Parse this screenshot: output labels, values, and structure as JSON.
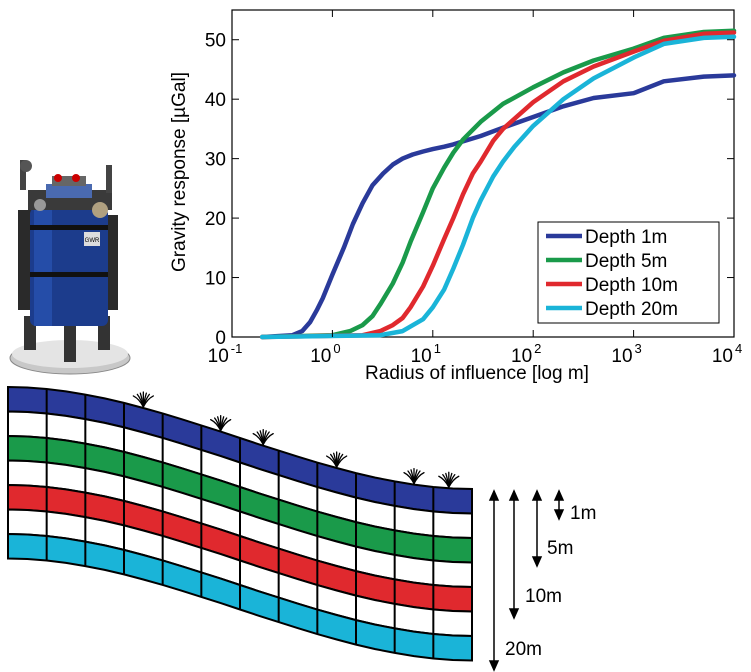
{
  "chart_data": {
    "type": "line",
    "xlabel": "Radius of influence [log m]",
    "ylabel": "Gravity response [µGal]",
    "x_scale": "log",
    "xlim": [
      0.1,
      10000
    ],
    "ylim": [
      0,
      55
    ],
    "x_ticks": [
      {
        "value": 0.1,
        "base": "10",
        "exp": "-1"
      },
      {
        "value": 1,
        "base": "10",
        "exp": "0"
      },
      {
        "value": 10,
        "base": "10",
        "exp": "1"
      },
      {
        "value": 100,
        "base": "10",
        "exp": "2"
      },
      {
        "value": 1000,
        "base": "10",
        "exp": "3"
      },
      {
        "value": 10000,
        "base": "10",
        "exp": "4"
      }
    ],
    "y_ticks": [
      0,
      10,
      20,
      30,
      40,
      50
    ],
    "grid": false,
    "legend_position": "bottom-right",
    "series": [
      {
        "name": "Depth 1m",
        "color": "#2a3a9a",
        "x": [
          0.2,
          0.4,
          0.5,
          0.6,
          0.7,
          0.8,
          1,
          1.3,
          1.6,
          2,
          2.5,
          3.2,
          4,
          5,
          6.3,
          8,
          10,
          13,
          16,
          20,
          30,
          50,
          100,
          200,
          400,
          1000,
          2000,
          5000,
          10000
        ],
        "y": [
          0,
          0.3,
          1,
          2.5,
          4.5,
          6.5,
          10.5,
          15,
          19,
          22.5,
          25.5,
          27.5,
          29,
          30,
          30.7,
          31.2,
          31.6,
          32,
          32.4,
          32.9,
          33.8,
          35.2,
          37,
          38.8,
          40.2,
          41,
          43,
          43.8,
          44
        ]
      },
      {
        "name": "Depth 5m",
        "color": "#1a9a4a",
        "x": [
          0.2,
          1,
          1.5,
          2,
          2.5,
          3,
          4,
          5,
          6,
          8,
          10,
          13,
          16,
          20,
          30,
          50,
          100,
          200,
          400,
          1000,
          2000,
          5000,
          10000
        ],
        "y": [
          0,
          0.3,
          1,
          2,
          3.5,
          5.5,
          9,
          12.5,
          16,
          21,
          25,
          28.5,
          31,
          33.2,
          36.2,
          39.2,
          42,
          44.5,
          46.5,
          48.5,
          50.3,
          51.3,
          51.5
        ]
      },
      {
        "name": "Depth 10m",
        "color": "#e0292e",
        "x": [
          0.2,
          2,
          3,
          4,
          5,
          6,
          8,
          10,
          13,
          16,
          20,
          25,
          30,
          40,
          50,
          100,
          200,
          400,
          1000,
          2000,
          5000,
          10000
        ],
        "y": [
          0,
          0.3,
          1,
          2,
          3.2,
          5,
          8.5,
          12,
          16.5,
          20,
          24,
          27.5,
          29.5,
          33,
          35,
          39.5,
          43,
          45.5,
          48,
          49.8,
          51,
          51.2
        ]
      },
      {
        "name": "Depth 20m",
        "color": "#1ab4d8",
        "x": [
          0.2,
          3,
          5,
          8,
          10,
          13,
          16,
          20,
          25,
          30,
          40,
          50,
          65,
          100,
          200,
          400,
          1000,
          2000,
          5000,
          10000
        ],
        "y": [
          0,
          0.3,
          1,
          3,
          5,
          8,
          11.5,
          15.5,
          20,
          23,
          27,
          29.5,
          32,
          35.5,
          40,
          43.5,
          47,
          49.3,
          50.3,
          50.5
        ]
      }
    ]
  },
  "diagram": {
    "depth_labels": [
      "1m",
      "5m",
      "10m",
      "20m"
    ],
    "layer_colors": [
      "#2a3a9a",
      "#ffffff",
      "#1a9a4a",
      "#ffffff",
      "#e0292e",
      "#ffffff",
      "#1ab4d8"
    ]
  },
  "instrument": {
    "body_color": "#1c3c8c",
    "logo_text": "GWR"
  }
}
